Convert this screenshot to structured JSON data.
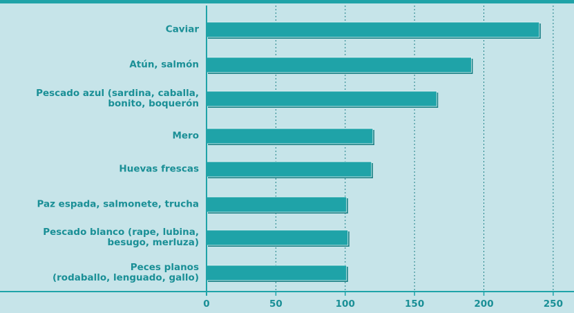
{
  "chart_data": {
    "type": "bar",
    "orientation": "horizontal",
    "categories": [
      "Caviar",
      "Atún, salmón",
      "Pescado azul (sardina, caballa,\nbonito, boquerón",
      "Mero",
      "Huevas frescas",
      "Paz espada, salmonete, trucha",
      "Pescado blanco (rape, lubina,\nbesugo, merluza)",
      "Peces planos\n(rodaballo, lenguado, gallo)"
    ],
    "values": [
      240,
      191,
      166,
      120,
      119,
      101,
      102,
      101
    ],
    "color": "#1fa3a8",
    "xlim": [
      0,
      265
    ],
    "xticks": [
      0,
      50,
      100,
      150,
      200,
      250
    ],
    "grid": true
  }
}
